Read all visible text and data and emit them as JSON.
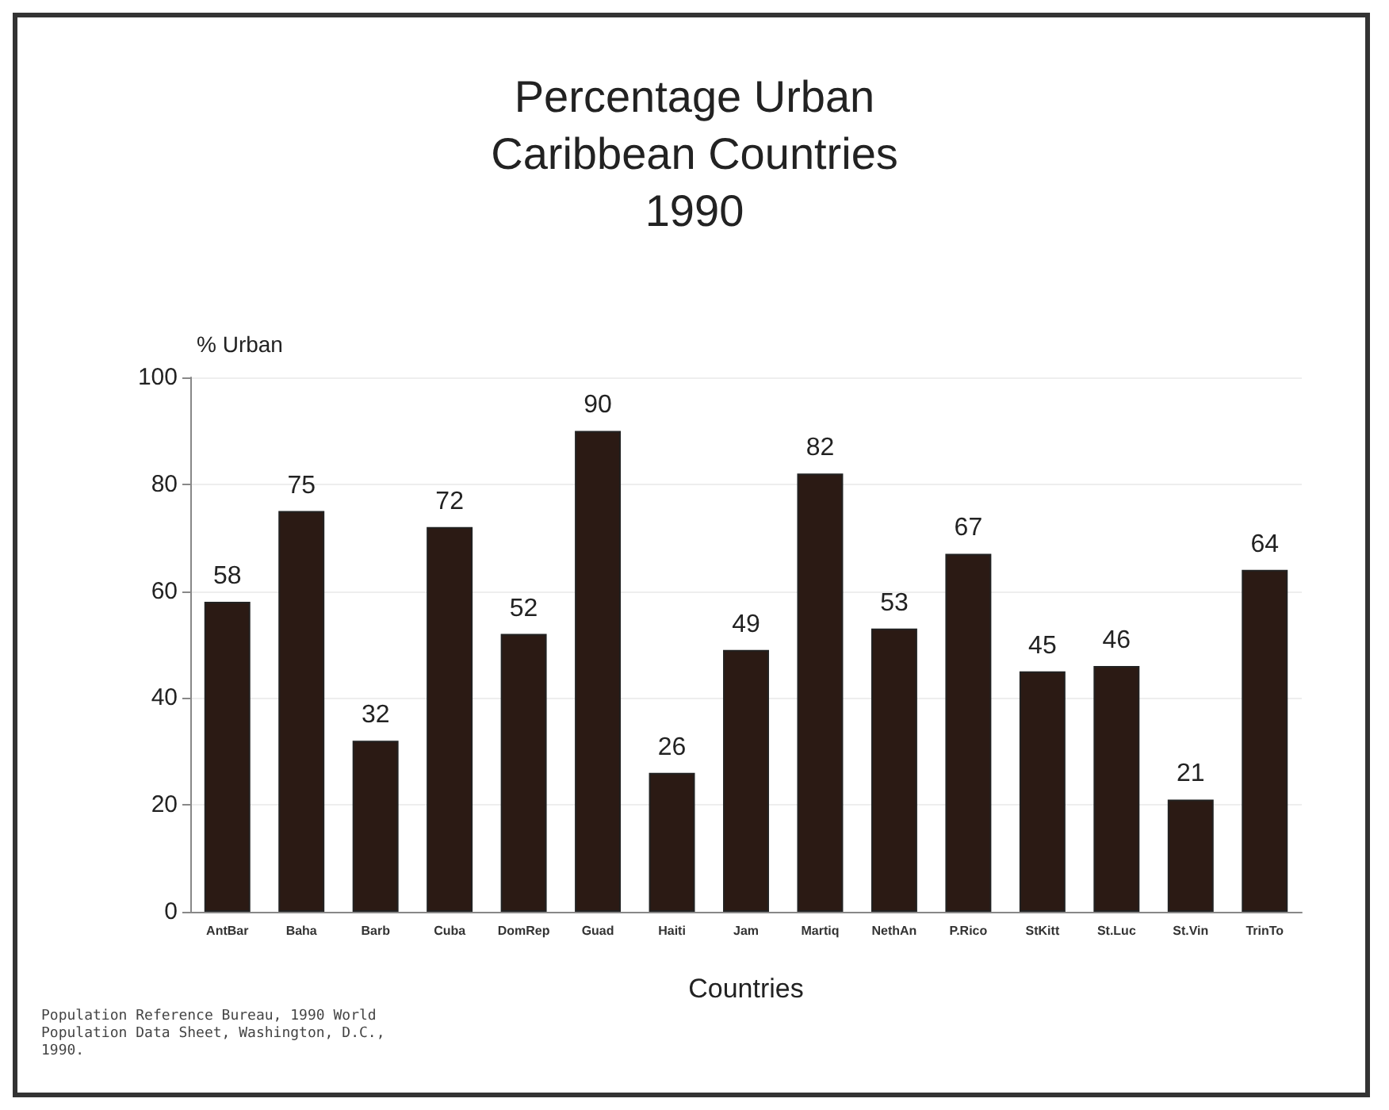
{
  "chart_data": {
    "type": "bar",
    "title": "Percentage Urban\nCaribbean Countries\n1990",
    "xlabel": "Countries",
    "ylabel": "% Urban",
    "categories": [
      "AntBar",
      "Baha",
      "Barb",
      "Cuba",
      "DomRep",
      "Guad",
      "Haiti",
      "Jam",
      "Martiq",
      "NethAn",
      "P.Rico",
      "StKitt",
      "St.Luc",
      "St.Vin",
      "TrinTo"
    ],
    "values": [
      58,
      75,
      32,
      72,
      52,
      90,
      26,
      49,
      82,
      53,
      67,
      45,
      46,
      21,
      64
    ],
    "color": "#2b1a14",
    "ylim": [
      0,
      100
    ],
    "yticks": [
      0,
      20,
      40,
      60,
      80,
      100
    ],
    "grid": "y",
    "data_labels": true,
    "annotations": [
      "Population Reference Bureau, 1990 World\nPopulation Data Sheet, Washington, D.C.,\n1990."
    ]
  }
}
